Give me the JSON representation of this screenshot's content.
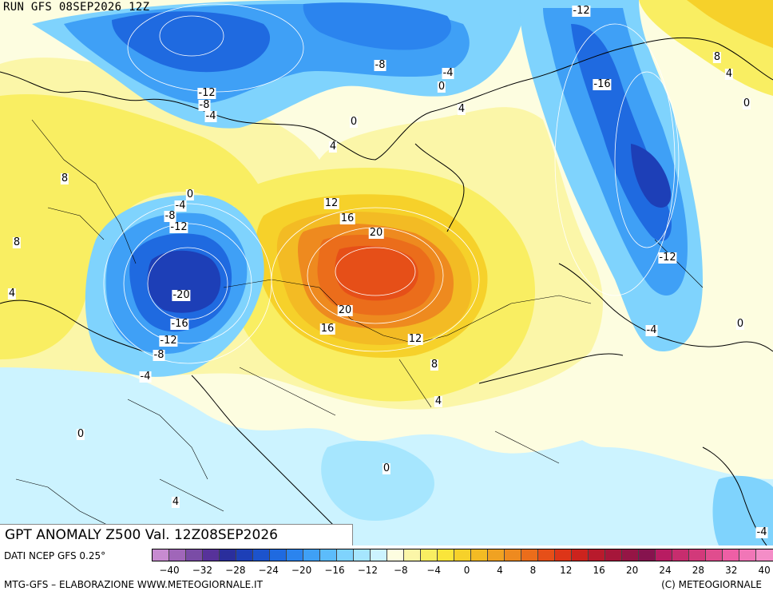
{
  "header": {
    "run_title": "RUN GFS 08SEP2026 12Z"
  },
  "map": {
    "title": "GPT ANOMALY Z500 Val. 12Z08SEP2026",
    "contour_labels": [
      "-12",
      "-8",
      "0",
      "-4",
      "4",
      "8",
      "4",
      "0",
      "-12",
      "-8",
      "-4",
      "-16",
      "0",
      "4",
      "8",
      "0",
      "-4",
      "-8",
      "-12",
      "12",
      "16",
      "20",
      "8",
      "-20",
      "20",
      "16",
      "12",
      "-12",
      "4",
      "-16",
      "-12",
      "8",
      "-8",
      "-4",
      "-4",
      "0",
      "4",
      "0",
      "0",
      "4",
      "-4"
    ],
    "colors": {
      "ocean_background": "#d6f5ff",
      "land_lines": "#000000",
      "contour_lines": "#ffffff"
    }
  },
  "legend": {
    "data_source": "DATI NCEP GFS 0.25°",
    "ticks": [
      "−40",
      "−32",
      "−28",
      "−24",
      "−20",
      "−16",
      "−12",
      "−8",
      "−4",
      "0",
      "4",
      "8",
      "12",
      "16",
      "20",
      "24",
      "28",
      "32",
      "40"
    ],
    "colors": [
      "#c78bd0",
      "#a066b9",
      "#7a4ca6",
      "#57329a",
      "#2a2e9c",
      "#1d3fb7",
      "#1c53cc",
      "#1f6ae0",
      "#2b84ee",
      "#3fa0f6",
      "#5cbcfb",
      "#7fd3fd",
      "#a6e6fe",
      "#ccf3ff",
      "#fdfde0",
      "#fbf6a8",
      "#f9ee62",
      "#fae53a",
      "#f6d12a",
      "#f3bb24",
      "#f0a222",
      "#ee8a1f",
      "#eb6d1b",
      "#e64f18",
      "#dd3518",
      "#cc231d",
      "#b81a2c",
      "#a6163a",
      "#951545",
      "#86134e",
      "#b81c62",
      "#c72d6e",
      "#d2397a",
      "#e04d8e",
      "#ee5fa5",
      "#f176b7",
      "#f48dc7"
    ]
  },
  "footer": {
    "elaboration": "MTG-GFS – ELABORAZIONE WWW.METEOGIORNALE.IT",
    "copyright": "(C) METEOGIORNALE"
  }
}
